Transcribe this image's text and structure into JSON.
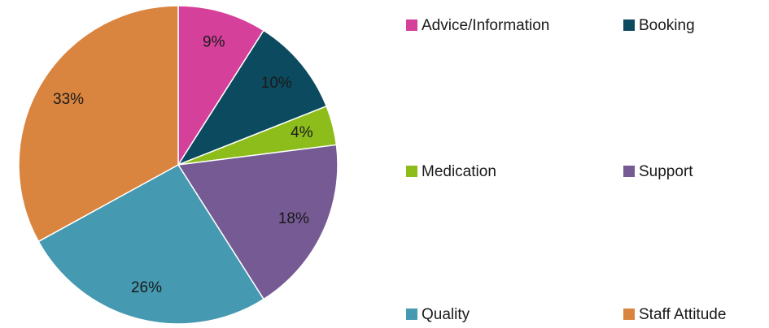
{
  "chart_data": {
    "type": "pie",
    "categories": [
      "Advice/Information",
      "Booking",
      "Medication",
      "Support",
      "Quality",
      "Staff Attitude"
    ],
    "values": [
      9,
      10,
      4,
      18,
      26,
      33
    ],
    "value_labels": [
      "9%",
      "10%",
      "4%",
      "18%",
      "26%",
      "33%"
    ],
    "colors": [
      "#d5409b",
      "#0c4a5f",
      "#8dbd1b",
      "#755a94",
      "#4599b1",
      "#d9843f"
    ],
    "legend": "right"
  }
}
